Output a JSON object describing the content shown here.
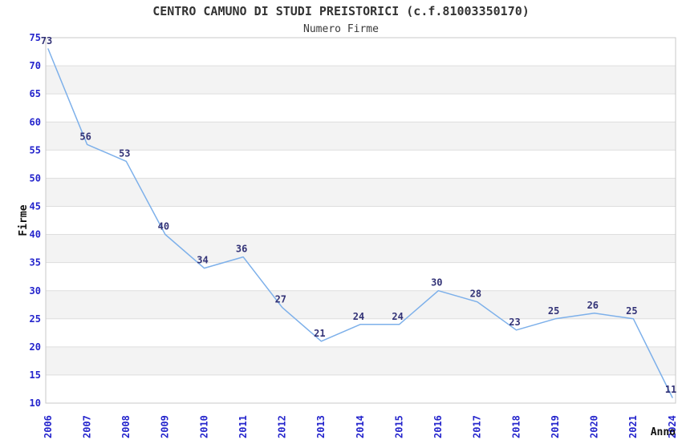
{
  "chart_data": {
    "type": "line",
    "title": "CENTRO CAMUNO DI STUDI PREISTORICI (c.f.81003350170)",
    "subtitle": "Numero Firme",
    "xlabel": "Anno",
    "ylabel": "Firme",
    "categories": [
      "2006",
      "2007",
      "2008",
      "2009",
      "2010",
      "2011",
      "2012",
      "2013",
      "2014",
      "2015",
      "2016",
      "2017",
      "2018",
      "2019",
      "2020",
      "2021",
      "2024"
    ],
    "series": [
      {
        "name": "Numero Firme",
        "values": [
          73,
          56,
          53,
          40,
          34,
          36,
          27,
          21,
          24,
          24,
          30,
          28,
          23,
          25,
          26,
          25,
          11
        ]
      }
    ],
    "ylim": [
      10,
      75
    ],
    "ytick_step": 5,
    "grid": true,
    "legend": "none",
    "band_fill_between_gridlines": true,
    "data_labels_shown": true,
    "colors": {
      "line": "#7db0ea",
      "tick_label": "#2424cc",
      "data_label": "#333377",
      "band": "#f3f3f3",
      "gridline": "#dedede",
      "plot_border": "#c8c8c8",
      "title": "#333333",
      "axis_title": "#111111",
      "background": "#ffffff"
    }
  }
}
